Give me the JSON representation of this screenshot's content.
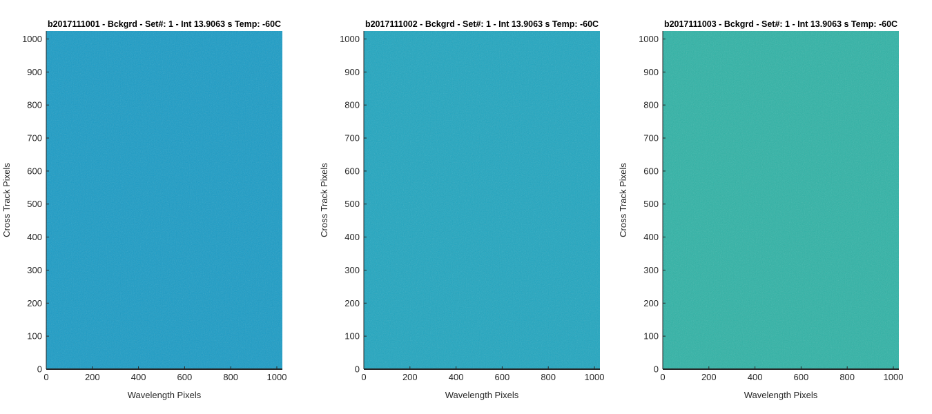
{
  "chart_data": [
    {
      "type": "heatmap",
      "title": "b2017111001 - Bckgrd - Set#: 1 - Int 13.9063 s Temp: -60C",
      "xlabel": "Wavelength Pixels",
      "ylabel": "Cross Track Pixels",
      "color": "#1a9cc6",
      "xlim": [
        0,
        1024
      ],
      "ylim": [
        0,
        1024
      ],
      "xticks": [
        0,
        200,
        400,
        600,
        800,
        1000
      ],
      "yticks": [
        0,
        100,
        200,
        300,
        400,
        500,
        600,
        700,
        800,
        900,
        1000
      ]
    },
    {
      "type": "heatmap",
      "title": "b2017111002 - Bckgrd - Set#: 1 - Int 13.9063 s Temp: -60C",
      "xlabel": "Wavelength Pixels",
      "ylabel": "Cross Track Pixels",
      "color": "#20a6c0",
      "xlim": [
        0,
        1024
      ],
      "ylim": [
        0,
        1024
      ],
      "xticks": [
        0,
        200,
        400,
        600,
        800,
        1000
      ],
      "yticks": [
        0,
        100,
        200,
        300,
        400,
        500,
        600,
        700,
        800,
        900,
        1000
      ]
    },
    {
      "type": "heatmap",
      "title": "b2017111003 - Bckgrd - Set#: 1 - Int 13.9063 s Temp: -60C",
      "xlabel": "Wavelength Pixels",
      "ylabel": "Cross Track Pixels",
      "color": "#2fb3a6",
      "xlim": [
        0,
        1024
      ],
      "ylim": [
        0,
        1024
      ],
      "xticks": [
        0,
        200,
        400,
        600,
        800,
        1000
      ],
      "yticks": [
        0,
        100,
        200,
        300,
        400,
        500,
        600,
        700,
        800,
        900,
        1000
      ]
    }
  ]
}
